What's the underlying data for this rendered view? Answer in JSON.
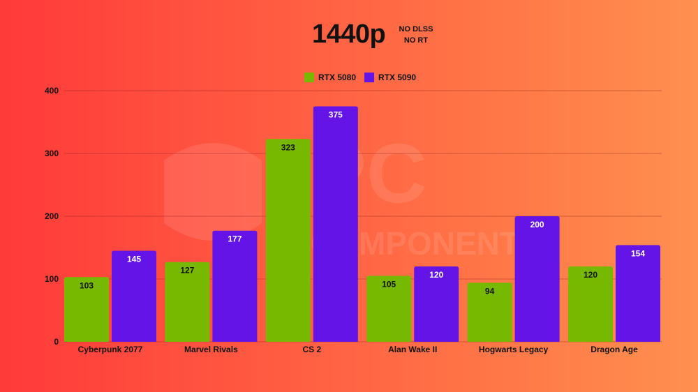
{
  "header": {
    "title": "1440p",
    "subtitle_line1": "NO DLSS",
    "subtitle_line2": "NO RT"
  },
  "legend": [
    {
      "label": "RTX 5080",
      "color": "#76b900"
    },
    {
      "label": "RTX 5090",
      "color": "#6414e6"
    }
  ],
  "watermark": {
    "text_line1": "PC",
    "text_line2": "COMPONENTES"
  },
  "chart_data": {
    "type": "bar",
    "categories": [
      "Cyberpunk 2077",
      "Marvel Rivals",
      "CS 2",
      "Alan Wake II",
      "Hogwarts Legacy",
      "Dragon Age"
    ],
    "series": [
      {
        "name": "RTX 5080",
        "values": [
          103,
          127,
          323,
          105,
          94,
          120
        ],
        "color": "#76b900"
      },
      {
        "name": "RTX 5090",
        "values": [
          145,
          177,
          375,
          120,
          200,
          154
        ],
        "color": "#6414e6"
      }
    ],
    "ylim": [
      0,
      400
    ],
    "yticks": [
      0,
      100,
      200,
      300,
      400
    ],
    "grid": true,
    "legend_position": "top-center"
  }
}
